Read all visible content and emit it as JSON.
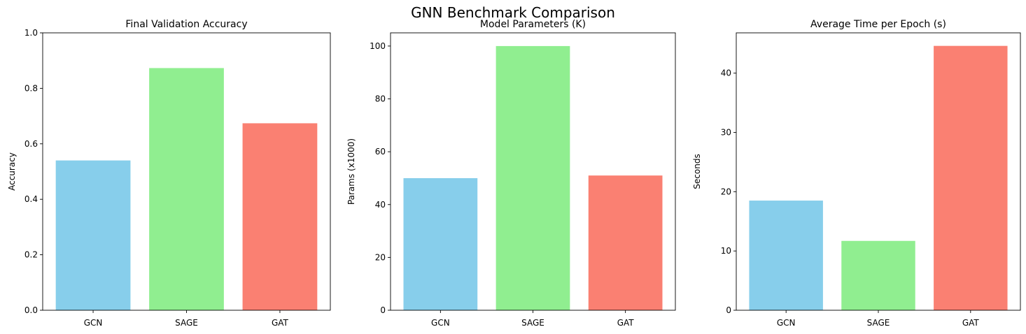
{
  "figure": {
    "title": "GNN Benchmark Comparison"
  },
  "chart_data": [
    {
      "type": "bar",
      "title": "Final Validation Accuracy",
      "xlabel": "",
      "ylabel": "Accuracy",
      "categories": [
        "GCN",
        "SAGE",
        "GAT"
      ],
      "values": [
        0.54,
        0.873,
        0.674
      ],
      "colors": [
        "#87CEEB",
        "#90EE90",
        "#FA8072"
      ],
      "ylim": [
        0,
        1.0
      ],
      "yticks": [
        0.0,
        0.2,
        0.4,
        0.6,
        0.8,
        1.0
      ],
      "ytick_labels": [
        "0.0",
        "0.2",
        "0.4",
        "0.6",
        "0.8",
        "1.0"
      ],
      "grid": false
    },
    {
      "type": "bar",
      "title": "Model Parameters (K)",
      "xlabel": "",
      "ylabel": "Params (x1000)",
      "categories": [
        "GCN",
        "SAGE",
        "GAT"
      ],
      "values": [
        50,
        100,
        51
      ],
      "colors": [
        "#87CEEB",
        "#90EE90",
        "#FA8072"
      ],
      "ylim": [
        0,
        105
      ],
      "yticks": [
        0,
        20,
        40,
        60,
        80,
        100
      ],
      "ytick_labels": [
        "0",
        "20",
        "40",
        "60",
        "80",
        "100"
      ],
      "grid": false
    },
    {
      "type": "bar",
      "title": "Average Time per Epoch (s)",
      "xlabel": "",
      "ylabel": "Seconds",
      "categories": [
        "GCN",
        "SAGE",
        "GAT"
      ],
      "values": [
        18.5,
        11.7,
        44.6
      ],
      "colors": [
        "#87CEEB",
        "#90EE90",
        "#FA8072"
      ],
      "ylim": [
        0,
        46.8
      ],
      "yticks": [
        0,
        10,
        20,
        30,
        40
      ],
      "ytick_labels": [
        "0",
        "10",
        "20",
        "30",
        "40"
      ],
      "grid": false
    }
  ]
}
